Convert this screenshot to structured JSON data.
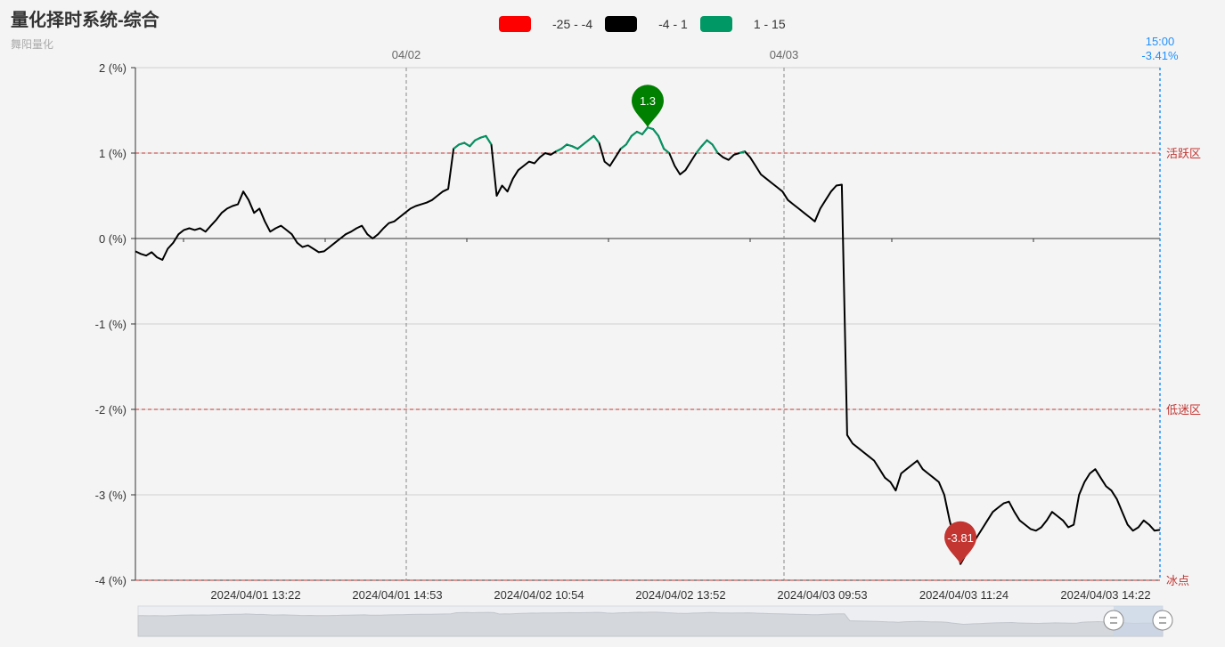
{
  "header": {
    "title": "量化择时系统-综合",
    "subtitle": "舞阳量化"
  },
  "legend": [
    {
      "label": "-25 - -4",
      "color": "#ff0000"
    },
    {
      "label": "-4 - 1",
      "color": "#000000"
    },
    {
      "label": "1 - 15",
      "color": "#009966"
    }
  ],
  "colors": {
    "line_default": "#000000",
    "line_high": "#009966",
    "zone_line": "#c23531",
    "cursor": "#1e90ff",
    "max_pin": "#008000",
    "min_pin": "#c23531"
  },
  "chart_data": {
    "type": "line",
    "title": "量化择时系统-综合",
    "ylim": [
      -4,
      2
    ],
    "y_ticks": [
      "2 (%)",
      "1 (%)",
      "0 (%)",
      "-1 (%)",
      "-2 (%)",
      "-3 (%)",
      "-4 (%)"
    ],
    "x_ticks": [
      "2024/04/01 13:22",
      "2024/04/01 14:53",
      "2024/04/02 10:54",
      "2024/04/02 13:52",
      "2024/04/03 09:53",
      "2024/04/03 11:24",
      "2024/04/03 14:22"
    ],
    "day_markers": [
      "04/02",
      "04/03"
    ],
    "zones": [
      {
        "value": 1,
        "label": "活跃区"
      },
      {
        "value": -2,
        "label": "低迷区"
      },
      {
        "value": -4,
        "label": "冰点"
      }
    ],
    "cursor": {
      "time": "15:00",
      "value": "-3.41%"
    },
    "max_point": {
      "label": "1.3",
      "value": 1.3
    },
    "min_point": {
      "label": "-3.81",
      "value": -3.81
    },
    "series": [
      {
        "values": [
          -0.15,
          -0.18,
          -0.2,
          -0.16,
          -0.22,
          -0.25,
          -0.12,
          -0.05,
          0.05,
          0.1,
          0.12,
          0.1,
          0.12,
          0.08,
          0.15,
          0.22,
          0.3,
          0.35,
          0.38,
          0.4,
          0.55,
          0.45,
          0.3,
          0.35,
          0.2,
          0.08,
          0.12,
          0.15,
          0.1,
          0.05,
          -0.05,
          -0.1,
          -0.08,
          -0.12,
          -0.16,
          -0.15,
          -0.1,
          -0.05,
          0.0,
          0.05,
          0.08,
          0.12,
          0.15,
          0.05,
          0.0,
          0.05,
          0.12,
          0.18,
          0.2,
          0.25,
          0.3,
          0.35,
          0.38,
          0.4,
          0.42,
          0.45,
          0.5,
          0.55,
          0.58,
          1.05,
          1.1,
          1.12,
          1.08,
          1.15,
          1.18,
          1.2,
          1.1,
          0.5,
          0.62,
          0.55,
          0.7,
          0.8,
          0.85,
          0.9,
          0.88,
          0.95,
          1.0,
          0.98,
          1.02,
          1.05,
          1.1,
          1.08,
          1.05,
          1.1,
          1.15,
          1.2,
          1.12,
          0.9,
          0.85,
          0.95,
          1.05,
          1.1,
          1.2,
          1.25,
          1.22,
          1.3,
          1.28,
          1.2,
          1.05,
          1.0,
          0.85,
          0.75,
          0.8,
          0.9,
          1.0,
          1.08,
          1.15,
          1.1,
          1.0,
          0.95,
          0.92,
          0.98,
          1.0,
          1.02,
          0.95,
          0.85,
          0.75,
          0.7,
          0.65,
          0.6,
          0.55,
          0.45,
          0.4,
          0.35,
          0.3,
          0.25,
          0.2,
          0.35,
          0.45,
          0.55,
          0.62,
          0.63,
          -2.3,
          -2.4,
          -2.45,
          -2.5,
          -2.55,
          -2.6,
          -2.7,
          -2.8,
          -2.85,
          -2.95,
          -2.75,
          -2.7,
          -2.65,
          -2.6,
          -2.7,
          -2.75,
          -2.8,
          -2.85,
          -3.0,
          -3.3,
          -3.55,
          -3.81,
          -3.7,
          -3.6,
          -3.5,
          -3.4,
          -3.3,
          -3.2,
          -3.15,
          -3.1,
          -3.08,
          -3.2,
          -3.3,
          -3.35,
          -3.4,
          -3.42,
          -3.38,
          -3.3,
          -3.2,
          -3.25,
          -3.3,
          -3.38,
          -3.35,
          -3.0,
          -2.85,
          -2.75,
          -2.7,
          -2.8,
          -2.9,
          -2.95,
          -3.05,
          -3.2,
          -3.35,
          -3.42,
          -3.38,
          -3.3,
          -3.35,
          -3.42,
          -3.41
        ]
      }
    ]
  }
}
